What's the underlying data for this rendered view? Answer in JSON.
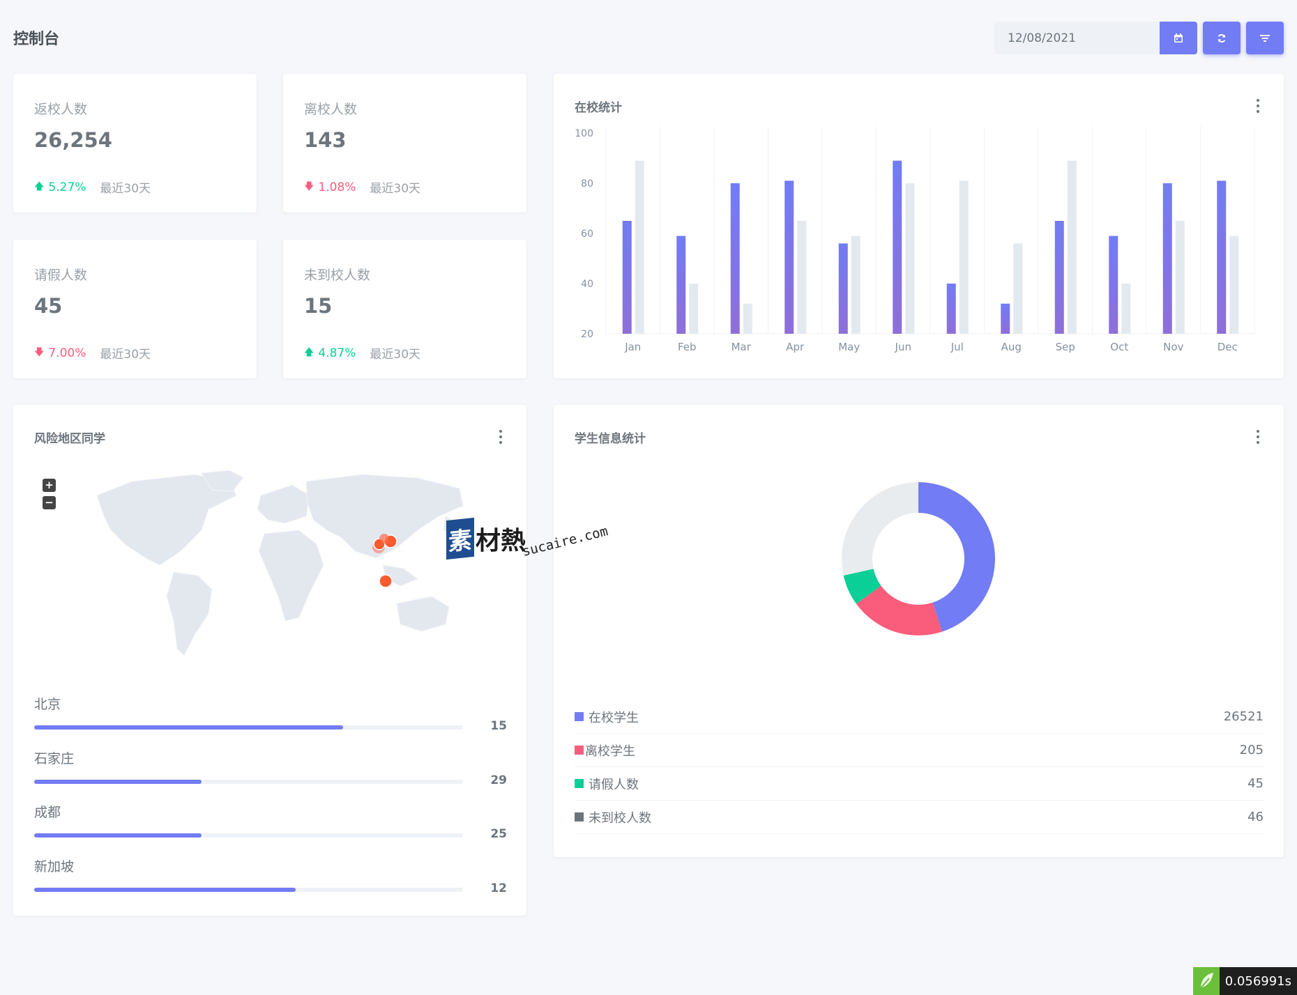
{
  "header": {
    "title": "控制台",
    "date_value": "12/08/2021"
  },
  "stats": [
    {
      "label": "返校人数",
      "value": "26,254",
      "change": "5.27%",
      "direction": "up",
      "period": "最近30天"
    },
    {
      "label": "离校人数",
      "value": "143",
      "change": "1.08%",
      "direction": "down",
      "period": "最近30天"
    },
    {
      "label": "请假人数",
      "value": "45",
      "change": "7.00%",
      "direction": "down",
      "period": "最近30天"
    },
    {
      "label": "未到校人数",
      "value": "15",
      "change": "4.87%",
      "direction": "up",
      "period": "最近30天"
    }
  ],
  "bar_card": {
    "title": "在校统计"
  },
  "chart_data": {
    "type": "bar",
    "categories": [
      "Jan",
      "Feb",
      "Mar",
      "Apr",
      "May",
      "Jun",
      "Jul",
      "Aug",
      "Sep",
      "Oct",
      "Nov",
      "Dec"
    ],
    "series": [
      {
        "values": [
          65,
          59,
          80,
          81,
          56,
          89,
          40,
          32,
          65,
          59,
          80,
          81
        ],
        "color": "#727cf5"
      },
      {
        "values": [
          89,
          40,
          32,
          65,
          59,
          80,
          81,
          56,
          89,
          40,
          65,
          59
        ],
        "color": "#e3eaef"
      }
    ],
    "ylim": [
      20,
      100
    ],
    "yticks": [
      "20",
      "40",
      "60",
      "80",
      "100"
    ],
    "grid": "vertical"
  },
  "map_card": {
    "title": "风险地区同学",
    "zoom_in": "+",
    "zoom_out": "−",
    "locations": [
      {
        "name": "北京",
        "value": "15",
        "fraction": 0.72
      },
      {
        "name": "石家庄",
        "value": "29",
        "fraction": 0.39
      },
      {
        "name": "成都",
        "value": "25",
        "fraction": 0.39
      },
      {
        "name": "新加坡",
        "value": "12",
        "fraction": 0.61
      }
    ]
  },
  "donut_card": {
    "title": "学生信息统计",
    "segments": [
      {
        "label": "在校学生",
        "value": "26521",
        "color": "#727cf5",
        "share": 0.45
      },
      {
        "label": "离校学生",
        "value": "205",
        "color": "#fa5c7c",
        "share": 0.2
      },
      {
        "label": "请假人数",
        "value": "45",
        "color": "#0acf97",
        "share": 0.065
      },
      {
        "label": "未到校人数",
        "value": "46",
        "color": "#e9ecef",
        "share": 0.285
      }
    ],
    "legend_colors": [
      "#727cf5",
      "#fa5c7c",
      "#0acf97",
      "#6c757d"
    ]
  },
  "watermark": {
    "logo_char": "素",
    "text": "材熱",
    "url": "sucaire.com"
  },
  "timer": "0.056991s",
  "icons": {
    "calendar": "calendar-icon",
    "refresh": "refresh-icon",
    "filter": "filter-icon",
    "up": "arrow-up-icon",
    "down": "arrow-down-icon"
  }
}
